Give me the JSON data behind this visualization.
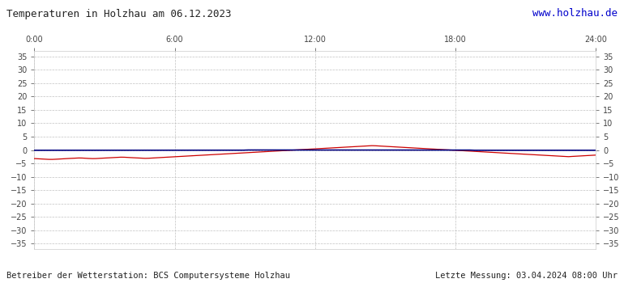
{
  "title": "Temperaturen in Holzhau am 06.12.2023",
  "url_text": "www.holzhau.de",
  "footer_left": "Betreiber der Wetterstation: BCS Computersysteme Holzhau",
  "footer_right": "Letzte Messung: 03.04.2024 08:00 Uhr",
  "x_ticks": [
    0,
    6,
    12,
    18,
    24
  ],
  "x_tick_labels": [
    "0:00",
    "6:00",
    "12:00",
    "18:00",
    "24:00"
  ],
  "ylim": [
    -37,
    37
  ],
  "yticks": [
    -35,
    -30,
    -25,
    -20,
    -15,
    -10,
    -5,
    0,
    5,
    10,
    15,
    20,
    25,
    30,
    35
  ],
  "bg_color": "#ffffff",
  "plot_bg_color": "#ffffff",
  "grid_color": "#bbbbbb",
  "title_color": "#222222",
  "url_color": "#0000cc",
  "footer_color": "#222222",
  "line_red_color": "#cc0000",
  "line_blue_color": "#000080",
  "figsize": [
    7.7,
    3.5
  ],
  "dpi": 100,
  "red_data": [
    -3.2,
    -3.3,
    -3.4,
    -3.5,
    -3.5,
    -3.4,
    -3.3,
    -3.2,
    -3.1,
    -3.0,
    -3.0,
    -3.1,
    -3.2,
    -3.2,
    -3.1,
    -3.0,
    -2.9,
    -2.8,
    -2.7,
    -2.7,
    -2.8,
    -2.9,
    -3.0,
    -3.1,
    -3.1,
    -3.0,
    -2.9,
    -2.8,
    -2.7,
    -2.6,
    -2.5,
    -2.4,
    -2.3,
    -2.2,
    -2.1,
    -2.0,
    -1.9,
    -1.8,
    -1.7,
    -1.6,
    -1.5,
    -1.4,
    -1.3,
    -1.2,
    -1.1,
    -1.0,
    -0.9,
    -0.8,
    -0.7,
    -0.6,
    -0.5,
    -0.4,
    -0.3,
    -0.2,
    -0.1,
    0.0,
    0.1,
    0.2,
    0.3,
    0.4,
    0.5,
    0.6,
    0.7,
    0.8,
    0.9,
    1.0,
    1.1,
    1.2,
    1.3,
    1.4,
    1.5,
    1.6,
    1.6,
    1.5,
    1.4,
    1.3,
    1.2,
    1.1,
    1.0,
    0.9,
    0.8,
    0.7,
    0.6,
    0.5,
    0.4,
    0.3,
    0.2,
    0.1,
    0.0,
    -0.1,
    -0.2,
    -0.3,
    -0.4,
    -0.5,
    -0.6,
    -0.7,
    -0.8,
    -0.9,
    -1.0,
    -1.1,
    -1.2,
    -1.3,
    -1.4,
    -1.5,
    -1.6,
    -1.7,
    -1.8,
    -1.9,
    -2.0,
    -2.1,
    -2.2,
    -2.3,
    -2.4,
    -2.5,
    -2.4,
    -2.3,
    -2.2,
    -2.1,
    -2.0,
    -1.9
  ],
  "blue_data": [
    -0.1,
    -0.1,
    -0.1,
    -0.1,
    -0.1,
    -0.1,
    -0.1,
    -0.1,
    -0.1,
    -0.1,
    -0.1,
    -0.1,
    -0.1,
    -0.1,
    -0.1,
    -0.1,
    -0.1,
    -0.1,
    -0.1,
    -0.1,
    -0.1,
    -0.1,
    -0.1,
    -0.1,
    -0.1,
    -0.1,
    -0.1,
    -0.1,
    -0.1,
    -0.1,
    -0.1,
    -0.1,
    -0.1,
    -0.1,
    -0.1,
    -0.1,
    -0.1,
    -0.1,
    -0.1,
    -0.1,
    -0.1,
    -0.1,
    -0.1,
    -0.1,
    -0.1,
    0.0,
    0.0,
    0.0,
    0.0,
    0.0,
    0.0,
    0.0,
    0.0,
    0.0,
    0.0,
    0.0,
    0.0,
    0.0,
    0.0,
    0.0,
    0.0,
    0.0,
    0.0,
    0.0,
    0.0,
    0.0,
    0.0,
    0.0,
    0.0,
    0.0,
    0.0,
    0.0,
    0.0,
    0.0,
    0.0,
    0.0,
    0.0,
    0.0,
    0.0,
    0.0,
    0.0,
    0.0,
    0.0,
    0.0,
    0.0,
    0.0,
    0.0,
    0.0,
    0.0,
    0.0,
    0.0,
    0.0,
    0.0,
    -0.1,
    -0.1,
    -0.1,
    -0.1,
    -0.1,
    -0.1,
    -0.1,
    -0.1,
    -0.1,
    -0.1,
    -0.1,
    -0.1,
    -0.1,
    -0.1,
    -0.1,
    -0.1,
    -0.1,
    -0.1,
    -0.1,
    -0.1,
    -0.1,
    -0.1,
    -0.1,
    -0.1,
    -0.1,
    -0.1,
    -0.1
  ]
}
